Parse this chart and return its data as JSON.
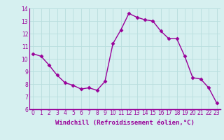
{
  "x": [
    0,
    1,
    2,
    3,
    4,
    5,
    6,
    7,
    8,
    9,
    10,
    11,
    12,
    13,
    14,
    15,
    16,
    17,
    18,
    19,
    20,
    21,
    22,
    23
  ],
  "y": [
    10.4,
    10.2,
    9.5,
    8.7,
    8.1,
    7.9,
    7.6,
    7.7,
    7.5,
    8.2,
    11.2,
    12.3,
    13.6,
    13.3,
    13.1,
    13.0,
    12.2,
    11.6,
    11.6,
    10.2,
    8.5,
    8.4,
    7.7,
    6.5
  ],
  "line_color": "#990099",
  "marker": "D",
  "marker_size": 2.5,
  "bg_color": "#d6f0f0",
  "grid_color": "#b8dede",
  "xlabel": "Windchill (Refroidissement éolien,°C)",
  "ylim": [
    6,
    14
  ],
  "xlim_min": -0.5,
  "xlim_max": 23.5,
  "yticks": [
    6,
    7,
    8,
    9,
    10,
    11,
    12,
    13,
    14
  ],
  "xticks": [
    0,
    1,
    2,
    3,
    4,
    5,
    6,
    7,
    8,
    9,
    10,
    11,
    12,
    13,
    14,
    15,
    16,
    17,
    18,
    19,
    20,
    21,
    22,
    23
  ],
  "tick_color": "#990099",
  "tick_fontsize": 5.5,
  "xlabel_fontsize": 6.5,
  "xlabel_color": "#990099",
  "line_width": 1.0,
  "spine_color": "#990099",
  "bottom_bar_color": "#990099"
}
